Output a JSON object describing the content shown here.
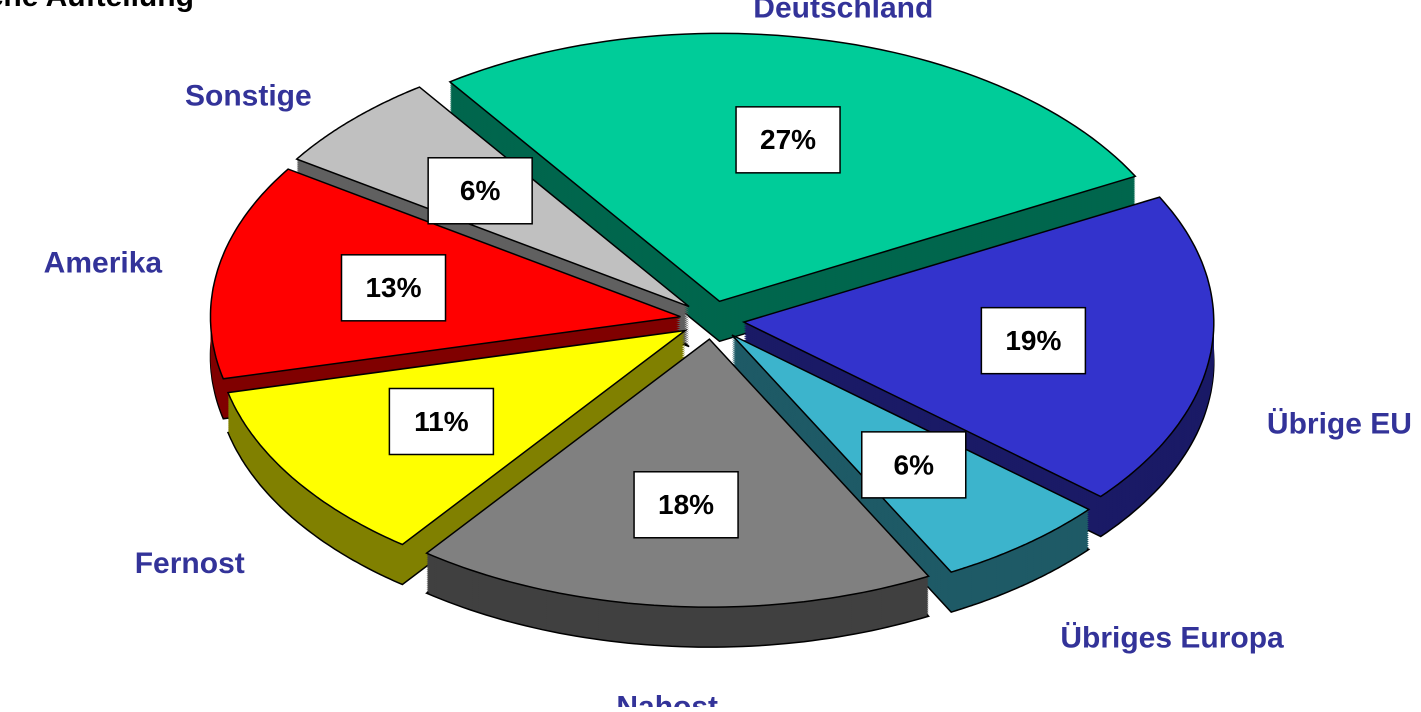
{
  "chart_data": {
    "type": "pie",
    "title": "sche Aufteilung",
    "categories": [
      "Deutschland",
      "Übrige EU",
      "Übriges Europa",
      "Nahost",
      "Fernost",
      "Amerika",
      "Sonstige"
    ],
    "values": [
      27,
      19,
      6,
      18,
      11,
      13,
      6
    ],
    "value_labels": [
      "27%",
      "19%",
      "6%",
      "18%",
      "11%",
      "13%",
      "6%"
    ],
    "colors": [
      "#00cc99",
      "#3333cc",
      "#3cb4cc",
      "#808080",
      "#ffff00",
      "#ff0000",
      "#c0c0c0"
    ]
  }
}
